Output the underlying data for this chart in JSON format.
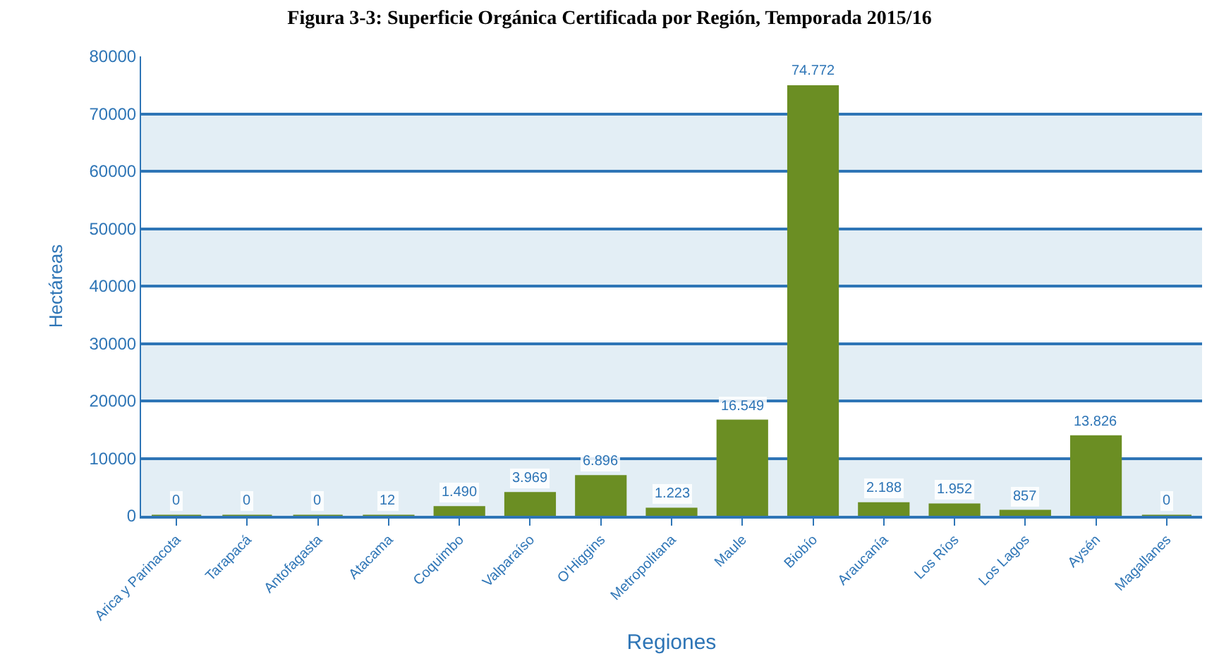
{
  "chart_data": {
    "type": "bar",
    "title": "Figura 3-3: Superficie Orgánica Certificada por Región, Temporada 2015/16",
    "xlabel": "Regiones",
    "ylabel": "Hectáreas",
    "categories": [
      "Arica y Parinacota",
      "Tarapacá",
      "Antofagasta",
      "Atacama",
      "Coquimbo",
      "Valparaíso",
      "O'Higgins",
      "Metropolitana",
      "Maule",
      "Biobío",
      "Araucanía",
      "Los Ríos",
      "Los Lagos",
      "Aysén",
      "Magallanes"
    ],
    "values": [
      0,
      0,
      0,
      12,
      1490,
      3969,
      6896,
      1223,
      16549,
      74772,
      2188,
      1952,
      857,
      13826,
      0
    ],
    "value_labels": [
      "0",
      "0",
      "0",
      "12",
      "1.490",
      "3.969",
      "6.896",
      "1.223",
      "16.549",
      "74.772",
      "2.188",
      "1.952",
      "857",
      "13.826",
      "0"
    ],
    "color": "#6b8e23",
    "ylim": [
      0,
      80000
    ],
    "yticks": [
      0,
      10000,
      20000,
      30000,
      40000,
      50000,
      60000,
      70000,
      80000
    ],
    "grid": "y",
    "legend": false,
    "bands": [
      {
        "axis": "y",
        "from": 0,
        "to": 10000,
        "color": "#e3eef5"
      },
      {
        "axis": "y",
        "from": 20000,
        "to": 30000,
        "color": "#e3eef5"
      },
      {
        "axis": "y",
        "from": 40000,
        "to": 50000,
        "color": "#e3eef5"
      },
      {
        "axis": "y",
        "from": 60000,
        "to": 70000,
        "color": "#e3eef5"
      }
    ]
  }
}
